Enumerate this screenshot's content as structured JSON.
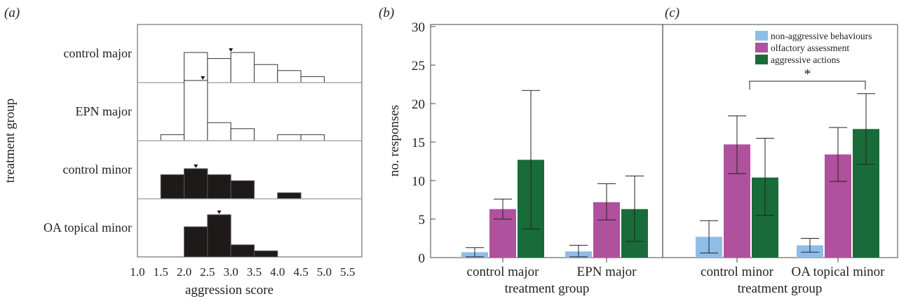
{
  "panel_labels": [
    "(a)",
    "(b)",
    "(c)"
  ],
  "colors": {
    "open_bar_fill": "#ffffff",
    "solid_bar_fill": "#1e1a1a",
    "bar_stroke": "#333333",
    "separator": "#999999",
    "non_aggressive": "#8fbde8",
    "olfactory": "#b0519d",
    "aggressive": "#1a6b3a"
  },
  "chart_data": [
    {
      "type": "bar",
      "panel": "(a)",
      "xlabel": "aggression score",
      "ylabel": "treatment group",
      "xlim": [
        1.0,
        6.0
      ],
      "xticks": [
        "1.0",
        "1.5",
        "2.0",
        "2.5",
        "3.0",
        "3.5",
        "4.0",
        "4.5",
        "5.0",
        "5.5"
      ],
      "bin_width": 0.5,
      "groups": [
        {
          "name": "control major",
          "style": "open",
          "bins": [
            2.0,
            2.5,
            3.0,
            3.5,
            4.0,
            4.5
          ],
          "values": [
            5,
            4,
            5,
            3,
            2,
            1
          ],
          "median": 3.0
        },
        {
          "name": "EPN major",
          "style": "open",
          "bins": [
            1.5,
            2.0,
            2.5,
            3.0,
            4.0,
            4.5
          ],
          "values": [
            1,
            10,
            3,
            2,
            1,
            1
          ],
          "median": 2.4
        },
        {
          "name": "control minor",
          "style": "solid",
          "bins": [
            1.5,
            2.0,
            2.5,
            3.0,
            4.0
          ],
          "values": [
            4,
            5,
            4,
            3,
            1
          ],
          "median": 2.25
        },
        {
          "name": "OA topical minor",
          "style": "solid",
          "bins": [
            2.0,
            2.5,
            3.0,
            3.5
          ],
          "values": [
            5,
            7,
            2,
            1
          ],
          "median": 2.75
        }
      ]
    },
    {
      "type": "bar",
      "panel": "(b)",
      "xlabel": "treatment group",
      "ylabel": "no. responses",
      "ylim": [
        0,
        30
      ],
      "yticks": [
        "0",
        "5",
        "10",
        "15",
        "20",
        "25",
        "30"
      ],
      "categories": [
        "control major",
        "EPN major"
      ],
      "series": [
        {
          "name": "non-aggressive behaviours",
          "values": [
            0.7,
            0.8
          ],
          "err_low": [
            0.1,
            0.1
          ],
          "err_high": [
            1.3,
            1.6
          ]
        },
        {
          "name": "olfactory assessment",
          "values": [
            6.3,
            7.2
          ],
          "err_low": [
            5.0,
            4.9
          ],
          "err_high": [
            7.6,
            9.6
          ]
        },
        {
          "name": "aggressive actions",
          "values": [
            12.7,
            6.3
          ],
          "err_low": [
            3.7,
            2.1
          ],
          "err_high": [
            21.7,
            10.6
          ]
        }
      ]
    },
    {
      "type": "bar",
      "panel": "(c)",
      "xlabel": "treatment group",
      "ylim": [
        0,
        30
      ],
      "categories": [
        "control minor",
        "OA topical minor"
      ],
      "legend": [
        "non-aggressive behaviours",
        "olfactory assessment",
        "aggressive actions"
      ],
      "legend_position": "top-right",
      "significance": {
        "label": "*",
        "between": [
          "control minor aggressive actions",
          "OA topical minor aggressive actions"
        ]
      },
      "series": [
        {
          "name": "non-aggressive behaviours",
          "values": [
            2.7,
            1.6
          ],
          "err_low": [
            0.6,
            0.7
          ],
          "err_high": [
            4.8,
            2.5
          ]
        },
        {
          "name": "olfactory assessment",
          "values": [
            14.7,
            13.4
          ],
          "err_low": [
            10.9,
            9.9
          ],
          "err_high": [
            18.4,
            16.9
          ]
        },
        {
          "name": "aggressive actions",
          "values": [
            10.4,
            16.7
          ],
          "err_low": [
            5.5,
            12.1
          ],
          "err_high": [
            15.5,
            21.3
          ]
        }
      ]
    }
  ]
}
